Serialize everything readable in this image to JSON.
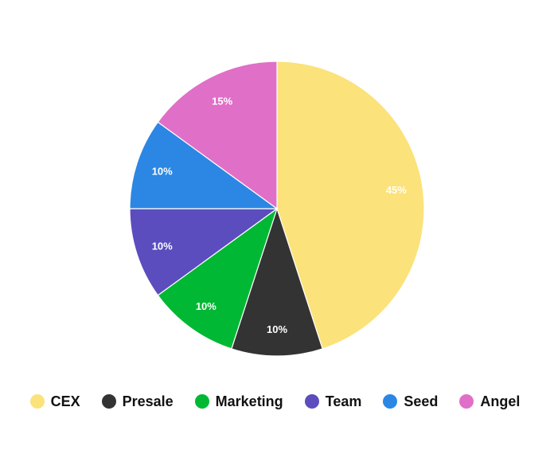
{
  "chart_data": {
    "type": "pie",
    "categories": [
      "CEX",
      "Presale",
      "Marketing",
      "Team",
      "Seed",
      "Angel"
    ],
    "values": [
      45,
      10,
      10,
      10,
      10,
      15
    ],
    "value_labels": [
      "45%",
      "10%",
      "10%",
      "10%",
      "10%",
      "15%"
    ],
    "colors": [
      "#fbe27a",
      "#333333",
      "#00b833",
      "#5b4dbd",
      "#2b87e3",
      "#e06fc8"
    ],
    "legend_placement": "bottom",
    "start_direction": "top",
    "clockwise": true
  }
}
